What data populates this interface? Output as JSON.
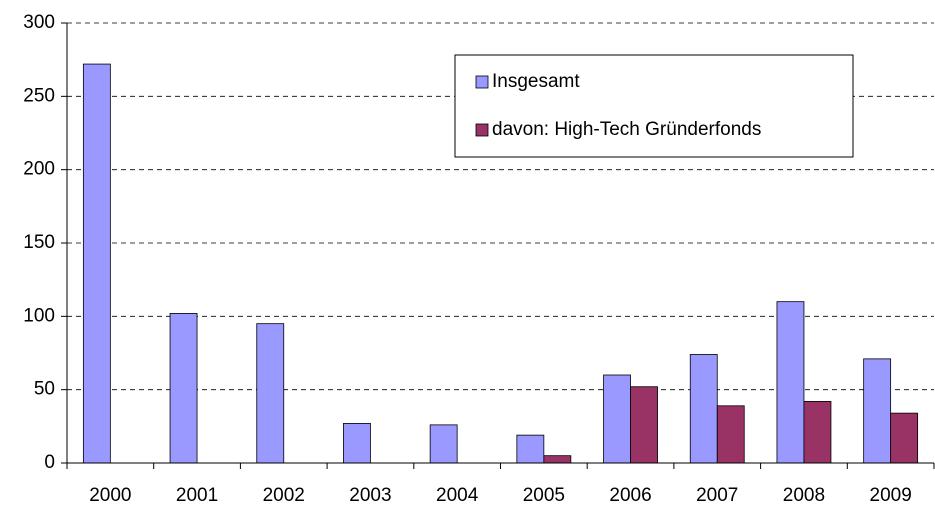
{
  "chart_data": {
    "type": "bar",
    "categories": [
      "2000",
      "2001",
      "2002",
      "2003",
      "2004",
      "2005",
      "2006",
      "2007",
      "2008",
      "2009"
    ],
    "series": [
      {
        "name": "Insgesamt",
        "color": "#9999ff",
        "values": [
          272,
          102,
          95,
          27,
          26,
          19,
          60,
          74,
          110,
          71
        ]
      },
      {
        "name": "davon: High-Tech Gründerfonds",
        "color": "#993366",
        "values": [
          null,
          null,
          null,
          null,
          null,
          5,
          52,
          39,
          42,
          34
        ]
      }
    ],
    "ylim": [
      0,
      300
    ],
    "yticks": [
      0,
      50,
      100,
      150,
      200,
      250,
      300
    ],
    "grid": true,
    "legend": "upper right"
  }
}
